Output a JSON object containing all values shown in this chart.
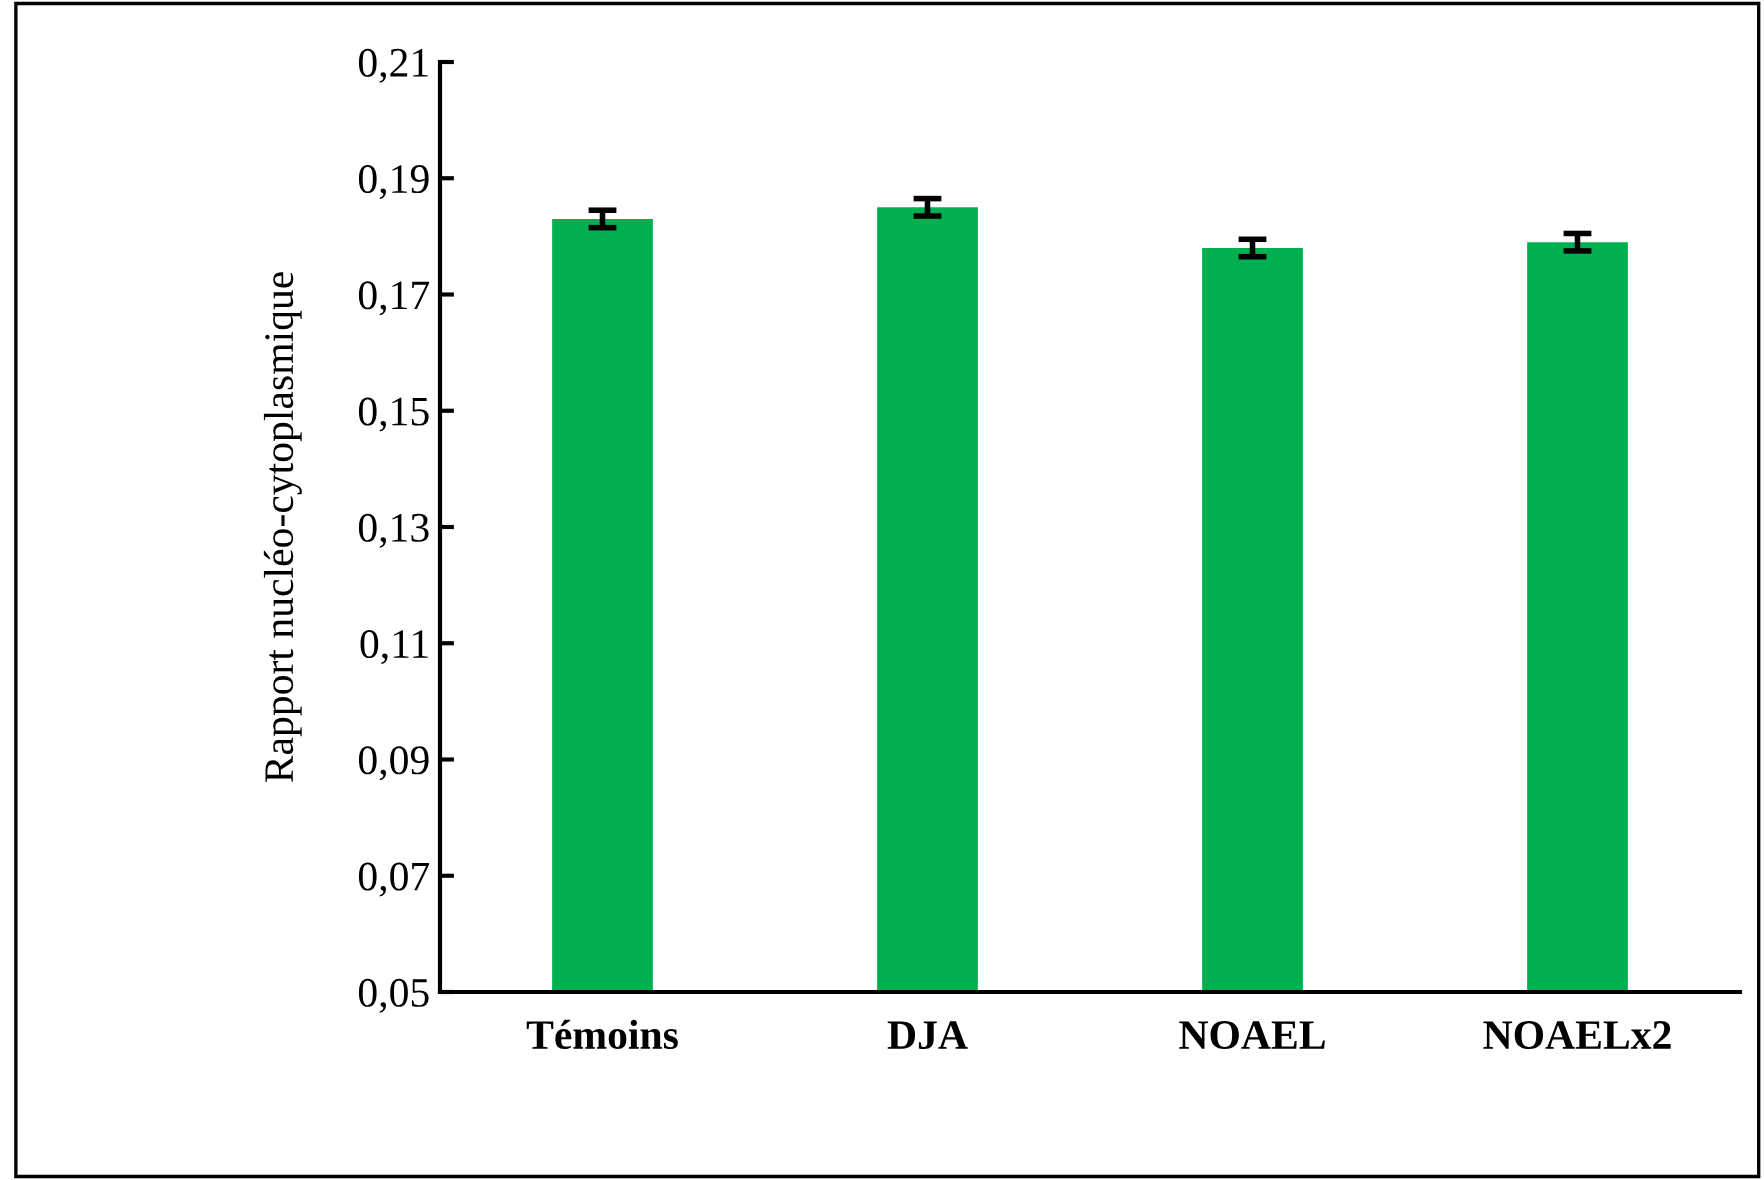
{
  "chart_data": {
    "type": "bar",
    "ylabel": "Rapport nucléo-cytoplasmique",
    "categories": [
      "Témoins",
      "DJA",
      "NOAEL",
      "NOAELx2"
    ],
    "values": [
      0.183,
      0.185,
      0.178,
      0.179
    ],
    "color": "#00b050",
    "errors": [
      0.0015,
      0.0015,
      0.0015,
      0.0015
    ],
    "ylim": [
      0.05,
      0.21
    ],
    "yticks": [
      {
        "value": 0.05,
        "label": "0,05"
      },
      {
        "value": 0.07,
        "label": "0,07"
      },
      {
        "value": 0.09,
        "label": "0,09"
      },
      {
        "value": 0.11,
        "label": "0,11"
      },
      {
        "value": 0.13,
        "label": "0,13"
      },
      {
        "value": 0.15,
        "label": "0,15"
      },
      {
        "value": 0.17,
        "label": "0,17"
      },
      {
        "value": 0.19,
        "label": "0,19"
      },
      {
        "value": 0.21,
        "label": "0,21"
      }
    ],
    "grid": false,
    "legend": false
  }
}
